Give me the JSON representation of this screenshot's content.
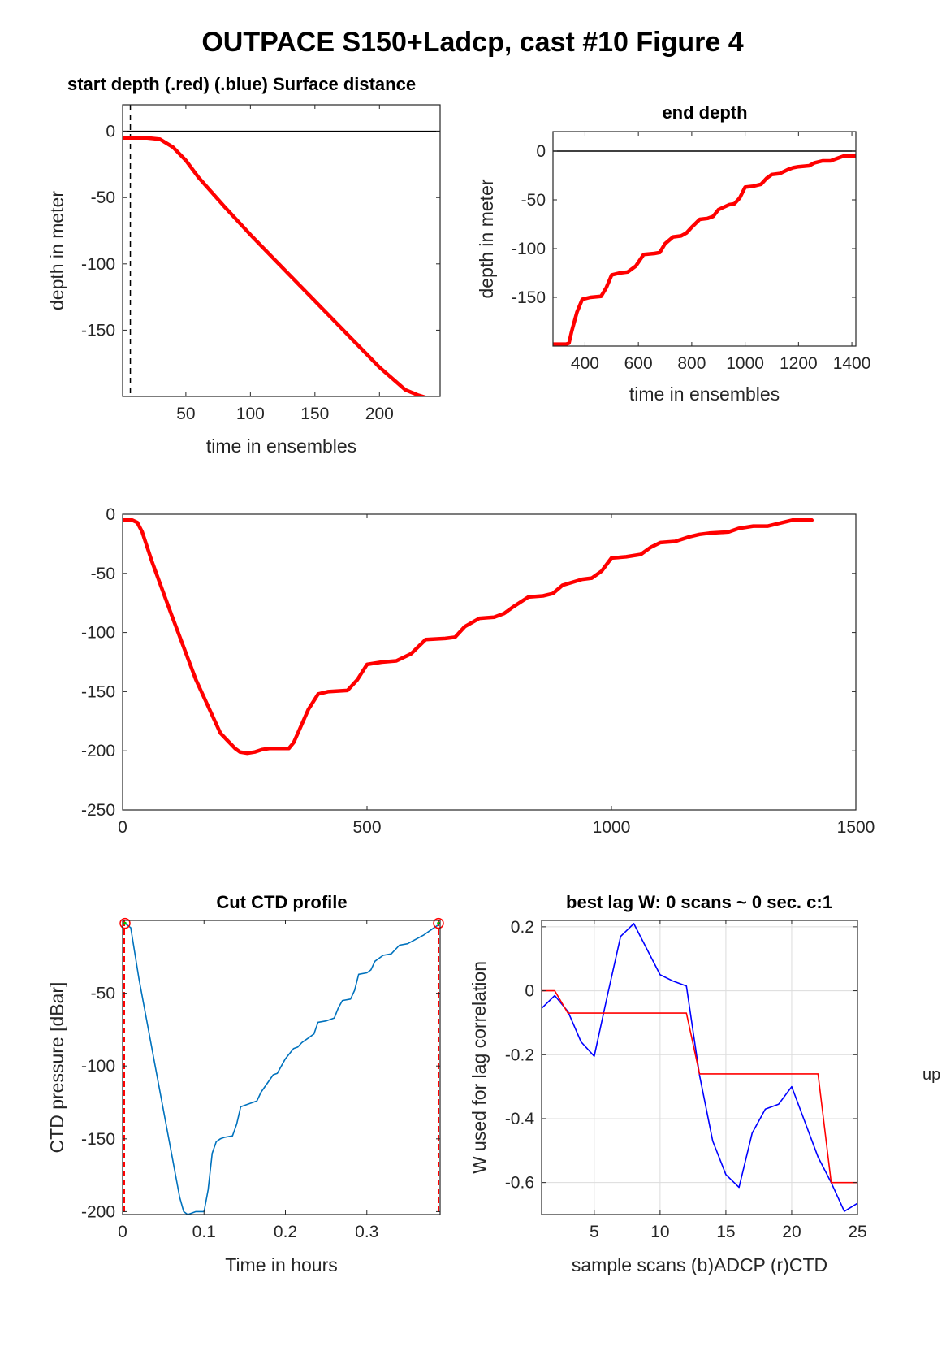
{
  "figure": {
    "title": "OUTPACE S150+Ladcp, cast #10   Figure 4",
    "side_label": "up"
  },
  "chart_data": [
    {
      "id": "start",
      "type": "line",
      "title": "start depth (.red) (.blue) Surface distance",
      "xlabel": "time in ensembles",
      "ylabel": "depth in meter",
      "xlim": [
        1,
        247
      ],
      "ylim": [
        -200,
        20
      ],
      "xticks": [
        50,
        100,
        150,
        200
      ],
      "yticks": [
        0,
        -50,
        -100,
        -150
      ],
      "grid": false,
      "reference_lines": {
        "zero_line_y": 0,
        "dashed_x": 7
      },
      "series": [
        {
          "color": "#ff0000",
          "x": [
            1,
            10,
            20,
            30,
            40,
            50,
            60,
            80,
            100,
            120,
            140,
            160,
            180,
            200,
            220,
            230,
            240,
            247
          ],
          "y": [
            -5,
            -5,
            -5,
            -6,
            -12,
            -22,
            -35,
            -57,
            -78,
            -98,
            -118,
            -138,
            -158,
            -178,
            -195,
            -199,
            -202,
            -202
          ]
        }
      ]
    },
    {
      "id": "end",
      "type": "line",
      "title": "end depth",
      "xlabel": "time in ensembles",
      "ylabel": "depth in meter",
      "xlim": [
        280,
        1415
      ],
      "ylim": [
        -200,
        20
      ],
      "xticks": [
        400,
        600,
        800,
        1000,
        1200,
        1400
      ],
      "yticks": [
        0,
        -50,
        -100,
        -150
      ],
      "grid": false,
      "reference_lines": {
        "zero_line_y": 0
      },
      "series": [
        {
          "color": "#ff0000",
          "x": [
            280,
            300,
            330,
            340,
            350,
            370,
            390,
            420,
            460,
            480,
            500,
            530,
            560,
            590,
            620,
            660,
            680,
            700,
            730,
            760,
            780,
            800,
            830,
            860,
            880,
            900,
            940,
            960,
            980,
            1000,
            1030,
            1060,
            1080,
            1100,
            1130,
            1160,
            1180,
            1200,
            1240,
            1260,
            1290,
            1320,
            1350,
            1370,
            1410
          ],
          "y": [
            -198,
            -198,
            -198,
            -197,
            -185,
            -165,
            -152,
            -150,
            -149,
            -140,
            -127,
            -125,
            -124,
            -118,
            -106,
            -105,
            -104,
            -95,
            -88,
            -87,
            -84,
            -78,
            -70,
            -69,
            -67,
            -60,
            -55,
            -54,
            -48,
            -37,
            -36,
            -34,
            -28,
            -24,
            -23,
            -19,
            -17,
            -16,
            -15,
            -12,
            -10,
            -10,
            -7,
            -5,
            -5
          ]
        }
      ]
    },
    {
      "id": "full",
      "type": "line",
      "title": "",
      "xlabel": "",
      "ylabel": "",
      "xlim": [
        0,
        1500
      ],
      "ylim": [
        -250,
        0
      ],
      "xticks": [
        0,
        500,
        1000,
        1500
      ],
      "yticks": [
        0,
        -50,
        -100,
        -150,
        -200,
        -250
      ],
      "grid": false,
      "series": [
        {
          "color": "#ff0000",
          "x": [
            0,
            20,
            30,
            40,
            60,
            100,
            150,
            200,
            230,
            240,
            255,
            270,
            285,
            300,
            340,
            350,
            380,
            400,
            420,
            460,
            480,
            500,
            530,
            560,
            590,
            620,
            660,
            680,
            700,
            730,
            760,
            780,
            800,
            830,
            860,
            880,
            900,
            940,
            960,
            980,
            1000,
            1030,
            1060,
            1080,
            1100,
            1130,
            1160,
            1180,
            1200,
            1240,
            1260,
            1290,
            1320,
            1350,
            1370,
            1410
          ],
          "y": [
            -5,
            -5,
            -7,
            -15,
            -40,
            -85,
            -140,
            -185,
            -198,
            -201,
            -202,
            -201,
            -199,
            -198,
            -198,
            -193,
            -165,
            -152,
            -150,
            -149,
            -140,
            -127,
            -125,
            -124,
            -118,
            -106,
            -105,
            -104,
            -95,
            -88,
            -87,
            -84,
            -78,
            -70,
            -69,
            -67,
            -60,
            -55,
            -54,
            -48,
            -37,
            -36,
            -34,
            -28,
            -24,
            -23,
            -19,
            -17,
            -16,
            -15,
            -12,
            -10,
            -10,
            -7,
            -5,
            -5
          ]
        }
      ]
    },
    {
      "id": "ctd",
      "type": "line",
      "title": "Cut CTD profile",
      "xlabel": "Time in hours",
      "ylabel": "CTD pressure [dBar]",
      "xlim": [
        0,
        0.39
      ],
      "ylim": [
        -202,
        0
      ],
      "xticks": [
        0,
        0.1,
        0.2,
        0.3
      ],
      "yticks": [
        -50,
        -100,
        -150,
        -200
      ],
      "grid": false,
      "markers": {
        "dashed_x": [
          0.002,
          0.388
        ],
        "circles": [
          [
            0.003,
            -2
          ],
          [
            0.388,
            -2
          ]
        ]
      },
      "series": [
        {
          "color": "#0072bd",
          "x": [
            0,
            0.003,
            0.01,
            0.02,
            0.04,
            0.06,
            0.07,
            0.075,
            0.08,
            0.09,
            0.1,
            0.105,
            0.11,
            0.115,
            0.12,
            0.125,
            0.135,
            0.14,
            0.145,
            0.16,
            0.165,
            0.17,
            0.185,
            0.19,
            0.2,
            0.21,
            0.215,
            0.22,
            0.235,
            0.24,
            0.25,
            0.26,
            0.265,
            0.27,
            0.28,
            0.285,
            0.29,
            0.3,
            0.305,
            0.31,
            0.32,
            0.33,
            0.34,
            0.35,
            0.36,
            0.37,
            0.38,
            0.388
          ],
          "y": [
            -2,
            -2,
            -5,
            -40,
            -100,
            -160,
            -190,
            -200,
            -202,
            -200,
            -200,
            -185,
            -160,
            -152,
            -150,
            -149,
            -148,
            -140,
            -128,
            -125,
            -124,
            -118,
            -106,
            -105,
            -95,
            -88,
            -87,
            -84,
            -78,
            -70,
            -69,
            -67,
            -60,
            -55,
            -54,
            -48,
            -37,
            -36,
            -34,
            -28,
            -24,
            -23,
            -17,
            -16,
            -13,
            -10,
            -6,
            -3
          ]
        }
      ]
    },
    {
      "id": "lag",
      "type": "line",
      "title": "best lag W: 0 scans ~ 0 sec.  c:1",
      "xlabel": "sample scans (b)ADCP (r)CTD",
      "ylabel": "W used for lag correlation",
      "xlim": [
        1,
        25
      ],
      "ylim": [
        -0.7,
        0.22
      ],
      "xticks": [
        5,
        10,
        15,
        20,
        25
      ],
      "yticks": [
        0.2,
        0,
        -0.2,
        -0.4,
        -0.6
      ],
      "grid": true,
      "series": [
        {
          "color": "#0000ff",
          "x": [
            1,
            2,
            3,
            4,
            5,
            6,
            7,
            8,
            9,
            10,
            11,
            12,
            13,
            14,
            15,
            16,
            17,
            18,
            19,
            20,
            21,
            22,
            23,
            24,
            25
          ],
          "y": [
            -0.055,
            -0.015,
            -0.065,
            -0.16,
            -0.205,
            -0.015,
            0.17,
            0.21,
            0.13,
            0.05,
            0.03,
            0.015,
            -0.265,
            -0.47,
            -0.575,
            -0.615,
            -0.445,
            -0.37,
            -0.355,
            -0.3,
            -0.41,
            -0.52,
            -0.6,
            -0.69,
            -0.665
          ]
        },
        {
          "color": "#ff0000",
          "x": [
            1,
            2,
            3,
            4,
            5,
            6,
            7,
            8,
            9,
            10,
            11,
            12,
            13,
            14,
            15,
            16,
            17,
            18,
            19,
            20,
            21,
            22,
            23,
            24,
            25
          ],
          "y": [
            0,
            0,
            -0.07,
            -0.07,
            -0.07,
            -0.07,
            -0.07,
            -0.07,
            -0.07,
            -0.07,
            -0.07,
            -0.07,
            -0.26,
            -0.26,
            -0.26,
            -0.26,
            -0.26,
            -0.26,
            -0.26,
            -0.26,
            -0.26,
            -0.26,
            -0.6,
            -0.6,
            -0.6
          ]
        }
      ]
    }
  ]
}
